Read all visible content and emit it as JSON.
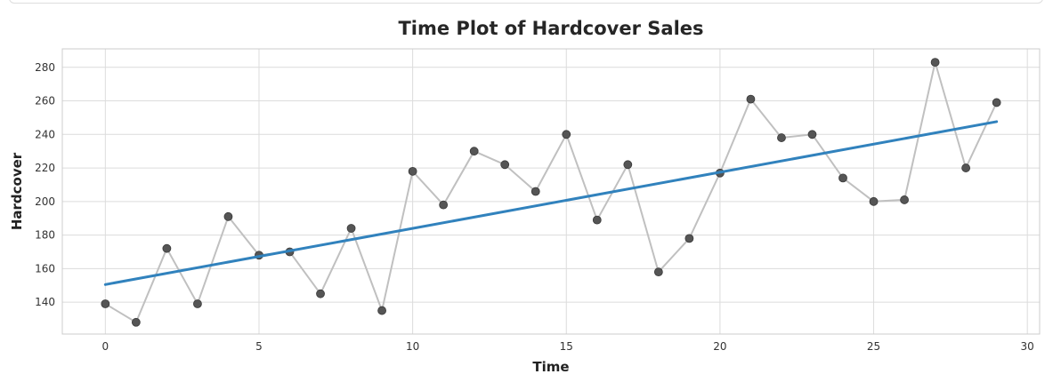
{
  "chart_data": {
    "type": "line",
    "title": "Time Plot of Hardcover Sales",
    "xlabel": "Time",
    "ylabel": "Hardcover",
    "xlim": [
      -1.4,
      30.4
    ],
    "ylim": [
      121,
      291
    ],
    "xticks": [
      0,
      5,
      10,
      15,
      20,
      25,
      30
    ],
    "yticks": [
      140,
      160,
      180,
      200,
      220,
      240,
      260,
      280
    ],
    "grid": true,
    "series": [
      {
        "kind": "observed",
        "x": [
          0,
          1,
          2,
          3,
          4,
          5,
          6,
          7,
          8,
          9,
          10,
          11,
          12,
          13,
          14,
          15,
          16,
          17,
          18,
          19,
          20,
          21,
          22,
          23,
          24,
          25,
          26,
          27,
          28,
          29
        ],
        "values": [
          139,
          128,
          172,
          139,
          191,
          168,
          170,
          145,
          184,
          135,
          218,
          198,
          230,
          222,
          206,
          240,
          189,
          222,
          158,
          178,
          217,
          261,
          238,
          240,
          214,
          200,
          201,
          283,
          220,
          259
        ]
      },
      {
        "kind": "trend",
        "x": [
          0,
          29
        ],
        "values": [
          150.5,
          247.6
        ]
      }
    ],
    "colors": {
      "observed_line": "#c0c0c0",
      "markers": "#555555",
      "trend": "#3182bd",
      "grid": "#dcdcdc",
      "frame": "#cccccc"
    }
  }
}
